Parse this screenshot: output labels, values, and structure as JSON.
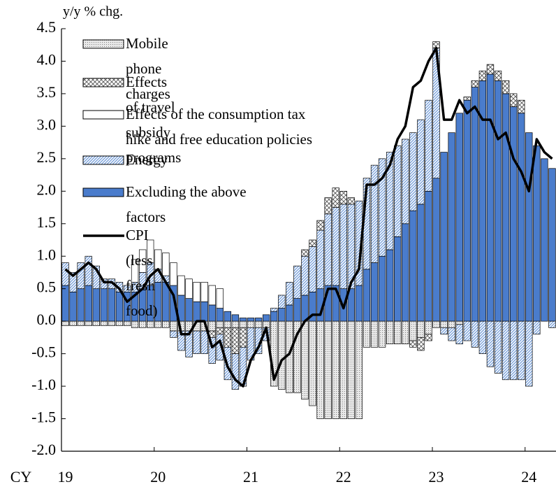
{
  "chart_data": {
    "type": "bar",
    "stacked": true,
    "y_label": "y/y % chg.",
    "x_label": "CY",
    "categories": [
      "19",
      null,
      null,
      null,
      null,
      null,
      null,
      null,
      null,
      null,
      null,
      null,
      "20",
      null,
      null,
      null,
      null,
      null,
      null,
      null,
      null,
      null,
      null,
      null,
      "21",
      null,
      null,
      null,
      null,
      null,
      null,
      null,
      null,
      null,
      null,
      null,
      "22",
      null,
      null,
      null,
      null,
      null,
      null,
      null,
      null,
      null,
      null,
      null,
      "23",
      null,
      null,
      null,
      null,
      null,
      null,
      null,
      null,
      null,
      null,
      null,
      "24",
      null,
      null,
      null
    ],
    "ylim": [
      -2.0,
      4.5
    ],
    "yticks": [
      {
        "value": 4.5,
        "label": "4.5"
      },
      {
        "value": 4.0,
        "label": "4.0"
      },
      {
        "value": 3.5,
        "label": "3.5"
      },
      {
        "value": 3.0,
        "label": "3.0"
      },
      {
        "value": 2.5,
        "label": "2.5"
      },
      {
        "value": 2.0,
        "label": "2.0"
      },
      {
        "value": 1.5,
        "label": "1.5"
      },
      {
        "value": 1.0,
        "label": "1.0"
      },
      {
        "value": 0.5,
        "label": "0.5"
      },
      {
        "value": 0.0,
        "label": "0.0"
      },
      {
        "value": -0.5,
        "label": "-0.5"
      },
      {
        "value": -1.0,
        "label": "-1.0"
      },
      {
        "value": -1.5,
        "label": "-1.5"
      },
      {
        "value": -2.0,
        "label": "-2.0"
      }
    ],
    "series": [
      {
        "name": "Excluding the above factors",
        "color": "#4a7ccc",
        "pattern": "solid",
        "values": [
          0.55,
          0.45,
          0.5,
          0.55,
          0.5,
          0.5,
          0.5,
          0.45,
          0.45,
          0.45,
          0.5,
          0.55,
          0.6,
          0.6,
          0.55,
          0.4,
          0.35,
          0.3,
          0.3,
          0.25,
          0.2,
          0.15,
          0.1,
          0.05,
          0.05,
          0.05,
          0.1,
          0.15,
          0.2,
          0.25,
          0.35,
          0.4,
          0.45,
          0.5,
          0.55,
          0.55,
          0.5,
          0.5,
          0.55,
          0.8,
          0.9,
          1.0,
          1.1,
          1.3,
          1.5,
          1.7,
          1.8,
          2.0,
          2.2,
          2.6,
          2.9,
          3.2,
          3.4,
          3.6,
          3.7,
          3.8,
          3.7,
          3.5,
          3.3,
          3.2,
          2.9,
          2.7,
          2.5,
          2.35
        ]
      },
      {
        "name": "Energy",
        "color": "#6f9ad8",
        "pattern": "diagonal",
        "values": [
          0.35,
          0.3,
          0.4,
          0.45,
          0.35,
          0.15,
          0.15,
          0.15,
          0.1,
          0.15,
          0.25,
          0.35,
          0.2,
          0.1,
          -0.1,
          -0.3,
          -0.4,
          -0.35,
          -0.35,
          -0.4,
          -0.4,
          -0.5,
          -0.55,
          -0.6,
          -0.5,
          -0.4,
          -0.2,
          0.05,
          0.2,
          0.35,
          0.5,
          0.6,
          0.7,
          0.9,
          1.1,
          1.2,
          1.3,
          1.3,
          1.3,
          1.4,
          1.5,
          1.5,
          1.5,
          1.4,
          1.3,
          1.2,
          1.3,
          1.4,
          2.0,
          -0.1,
          -0.2,
          -0.3,
          -0.3,
          -0.4,
          -0.5,
          -0.7,
          -0.8,
          -0.9,
          -0.9,
          -0.9,
          -1.0,
          -0.2,
          0,
          -0.1
        ]
      },
      {
        "name": "Effects of the consumption tax hike and free education policies",
        "color": "#ffffff",
        "pattern": "none",
        "values": [
          0,
          0,
          0,
          0,
          0,
          0,
          0,
          0,
          0,
          0.35,
          0.35,
          0.35,
          0.3,
          0.35,
          0.35,
          0.3,
          0.3,
          0.3,
          0.3,
          0.3,
          0.3,
          0,
          0,
          0,
          0,
          0,
          0,
          0,
          0,
          0,
          0,
          0,
          0,
          0,
          0,
          0,
          0,
          0,
          0,
          0,
          0,
          0,
          0,
          0,
          0,
          0,
          0,
          0,
          0,
          0,
          0,
          0,
          0,
          0,
          0,
          0,
          0,
          0,
          0,
          0,
          0,
          0,
          0,
          0
        ]
      },
      {
        "name": "Effects of travel subsidy programs",
        "color": "#555555",
        "pattern": "crosshatch",
        "values": [
          0,
          0,
          0,
          0,
          0,
          0,
          0,
          0,
          0,
          0,
          0,
          0,
          0,
          0,
          0,
          0,
          0,
          0,
          0,
          -0.1,
          -0.1,
          -0.3,
          -0.4,
          -0.3,
          0,
          0,
          0,
          0,
          0,
          0,
          0,
          0.1,
          0.1,
          0.15,
          0.25,
          0.3,
          0.2,
          0.1,
          0,
          0,
          0,
          0,
          0,
          0,
          0,
          -0.1,
          -0.2,
          -0.1,
          0.1,
          0,
          0,
          0,
          0.05,
          0.1,
          0.15,
          0.15,
          0.15,
          0.2,
          0.2,
          0.2,
          0,
          0,
          0,
          0
        ]
      },
      {
        "name": "Mobile phone charges",
        "color": "#666666",
        "pattern": "dots",
        "values": [
          -0.07,
          -0.07,
          -0.07,
          -0.07,
          -0.07,
          -0.07,
          -0.07,
          -0.07,
          -0.07,
          -0.1,
          -0.1,
          -0.1,
          -0.1,
          -0.1,
          -0.15,
          -0.15,
          -0.15,
          -0.15,
          -0.15,
          -0.15,
          -0.1,
          -0.1,
          -0.1,
          -0.1,
          -0.1,
          -0.1,
          -0.1,
          -1.0,
          -1.05,
          -1.1,
          -1.1,
          -1.2,
          -1.3,
          -1.5,
          -1.5,
          -1.5,
          -1.5,
          -1.5,
          -1.5,
          -0.4,
          -0.4,
          -0.4,
          -0.35,
          -0.35,
          -0.35,
          -0.3,
          -0.25,
          -0.2,
          -0.1,
          -0.1,
          -0.1,
          -0.05,
          0,
          0,
          0,
          0,
          0,
          0,
          0,
          0,
          0,
          0,
          0,
          0
        ]
      },
      {
        "name": "CPI (less fresh food)",
        "color": "#000000",
        "type": "line",
        "values": [
          0.8,
          0.7,
          0.8,
          0.9,
          0.8,
          0.6,
          0.6,
          0.5,
          0.3,
          0.4,
          0.5,
          0.7,
          0.8,
          0.6,
          0.4,
          -0.2,
          -0.2,
          0.0,
          0.0,
          -0.4,
          -0.3,
          -0.7,
          -0.9,
          -1.0,
          -0.6,
          -0.4,
          -0.1,
          -0.9,
          -0.6,
          -0.5,
          -0.2,
          0.0,
          0.1,
          0.1,
          0.5,
          0.5,
          0.2,
          0.6,
          0.8,
          2.1,
          2.1,
          2.2,
          2.4,
          2.8,
          3.0,
          3.6,
          3.7,
          4.0,
          4.2,
          3.1,
          3.1,
          3.4,
          3.2,
          3.3,
          3.1,
          3.1,
          2.8,
          2.9,
          2.5,
          2.3,
          2.0,
          2.8,
          2.6,
          2.5
        ]
      }
    ]
  }
}
